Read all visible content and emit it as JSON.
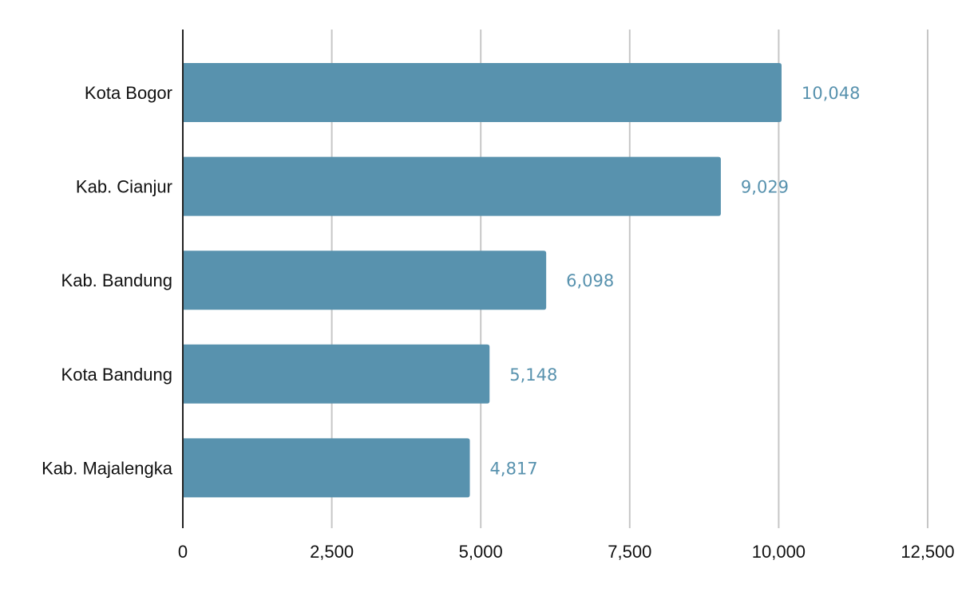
{
  "chart_data": {
    "type": "bar",
    "orientation": "horizontal",
    "title": "",
    "xlabel": "",
    "ylabel": "",
    "categories": [
      "Kota Bogor",
      "Kab. Cianjur",
      "Kab. Bandung",
      "Kota Bandung",
      "Kab. Majalengka"
    ],
    "values": [
      10048,
      9029,
      6098,
      5148,
      4817
    ],
    "value_labels": [
      "10,048",
      "9,029",
      "6,098",
      "5,148",
      "4,817"
    ],
    "xlim": [
      0,
      12500
    ],
    "ticks": [
      0,
      2500,
      5000,
      7500,
      10000,
      12500
    ],
    "tick_labels": [
      "0",
      "2,500",
      "5,000",
      "7,500",
      "10,000",
      "12,500"
    ],
    "grid": true,
    "legend": "none",
    "bar_color": "#5892ae",
    "label_color": "#5892ae"
  }
}
